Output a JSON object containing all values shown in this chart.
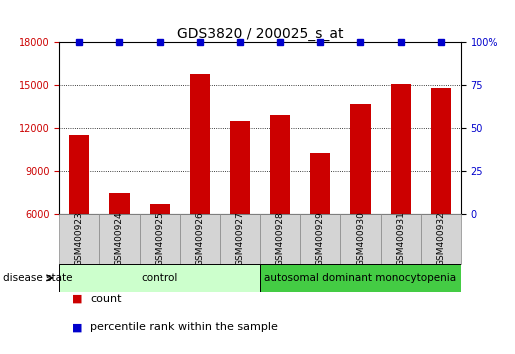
{
  "title": "GDS3820 / 200025_s_at",
  "samples": [
    "GSM400923",
    "GSM400924",
    "GSM400925",
    "GSM400926",
    "GSM400927",
    "GSM400928",
    "GSM400929",
    "GSM400930",
    "GSM400931",
    "GSM400932"
  ],
  "counts": [
    11500,
    7500,
    6700,
    15800,
    12500,
    12900,
    10300,
    13700,
    15100,
    14800
  ],
  "percentiles": [
    100,
    100,
    100,
    100,
    100,
    100,
    100,
    100,
    100,
    100
  ],
  "bar_color": "#cc0000",
  "dot_color": "#0000cc",
  "ylim_left": [
    6000,
    18000
  ],
  "ylim_right": [
    0,
    100
  ],
  "yticks_left": [
    6000,
    9000,
    12000,
    15000,
    18000
  ],
  "yticks_right": [
    0,
    25,
    50,
    75,
    100
  ],
  "groups": [
    {
      "label": "control",
      "indices": [
        0,
        1,
        2,
        3,
        4
      ],
      "color": "#ccffcc"
    },
    {
      "label": "autosomal dominant monocytopenia",
      "indices": [
        5,
        6,
        7,
        8,
        9
      ],
      "color": "#44cc44"
    }
  ],
  "disease_state_label": "disease state",
  "legend_count_label": "count",
  "legend_percentile_label": "percentile rank within the sample",
  "title_fontsize": 10,
  "tick_label_fontsize": 7,
  "sample_label_fontsize": 6.5,
  "group_label_fontsize": 7.5,
  "legend_fontsize": 8,
  "background_color": "#ffffff",
  "plot_bg_color": "#ffffff",
  "grid_color": "#000000",
  "left_tick_color": "#cc0000",
  "right_tick_color": "#0000cc",
  "label_box_color": "#d4d4d4",
  "label_box_edge": "#888888"
}
